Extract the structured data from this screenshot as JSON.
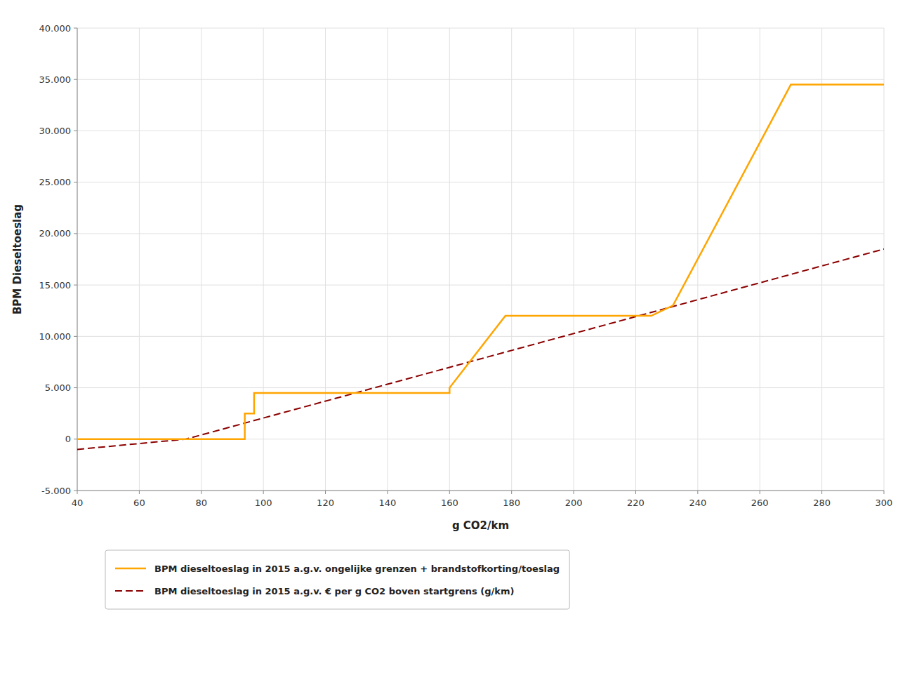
{
  "chart_data": {
    "type": "line",
    "xlabel": "g CO2/km",
    "ylabel": "BPM Dieseltoeslag",
    "xlim": [
      40,
      300
    ],
    "ylim": [
      -5000,
      40000
    ],
    "xticks": [
      40,
      60,
      80,
      100,
      120,
      140,
      160,
      180,
      200,
      220,
      240,
      260,
      280,
      300
    ],
    "yticks": [
      {
        "value": -5000,
        "label": "-5.000"
      },
      0,
      {
        "value": 5000,
        "label": "5.000"
      },
      {
        "value": 10000,
        "label": "10.000"
      },
      {
        "value": 15000,
        "label": "15.000"
      },
      {
        "value": 20000,
        "label": "20.000"
      },
      {
        "value": 25000,
        "label": "25.000"
      },
      {
        "value": 30000,
        "label": "30.000"
      },
      {
        "value": 35000,
        "label": "35.000"
      },
      {
        "value": 40000,
        "label": "40.000"
      }
    ],
    "grid": true,
    "legend": "bottom",
    "series": [
      {
        "name": "BPM dieseltoeslag in 2015 a.g.v. ongelijke grenzen + brandstofkorting/toeslag",
        "color": "#FFA500",
        "line_style": "solid",
        "x": [
          40,
          94,
          94,
          97,
          97,
          110,
          110,
          160,
          160,
          178,
          178,
          225,
          225,
          232,
          232,
          270,
          270,
          300
        ],
        "values": [
          0,
          0,
          2500,
          2500,
          4500,
          4500,
          4500,
          4500,
          5000,
          12000,
          12000,
          12000,
          12000,
          13000,
          13000,
          34500,
          34500,
          34500
        ]
      },
      {
        "name": "BPM dieseltoeslag in 2015 a.g.v. € per g CO2 boven startgrens (g/km)",
        "color": "#8B0000",
        "line_style": "dashed",
        "x": [
          40,
          75,
          300
        ],
        "values": [
          -1000,
          0,
          18500
        ]
      }
    ]
  }
}
